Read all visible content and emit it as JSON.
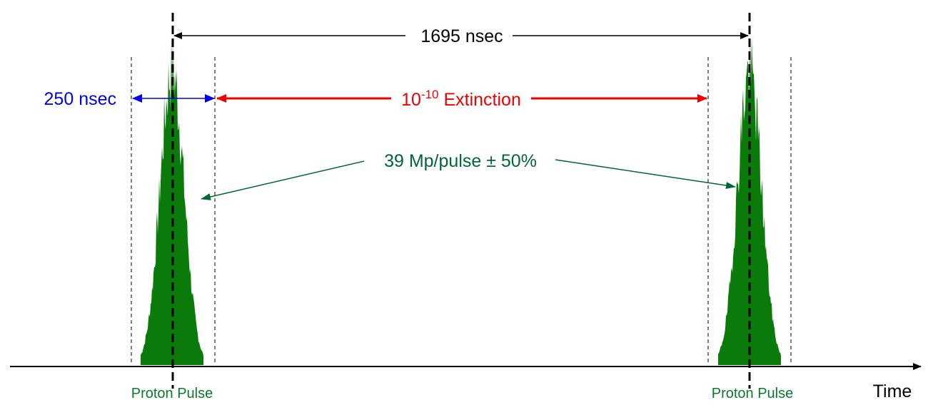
{
  "labels": {
    "period": "1695 nsec",
    "pulse_width": "250 nsec",
    "extinction_base": "10",
    "extinction_exp": "-10",
    "extinction_word": " Extinction",
    "intensity": "39 Mp/pulse ± 50%",
    "pulse_left": "Proton Pulse",
    "pulse_right": "Proton Pulse",
    "time_axis": "Time"
  },
  "colors": {
    "period": "#000000",
    "pulse_width": "#0000ee",
    "extinction": "#ee0000",
    "intensity": "#006633",
    "pulse_fill": "#0a7a0a",
    "pulse_label": "#0a7a2a",
    "axis": "#000000"
  }
}
